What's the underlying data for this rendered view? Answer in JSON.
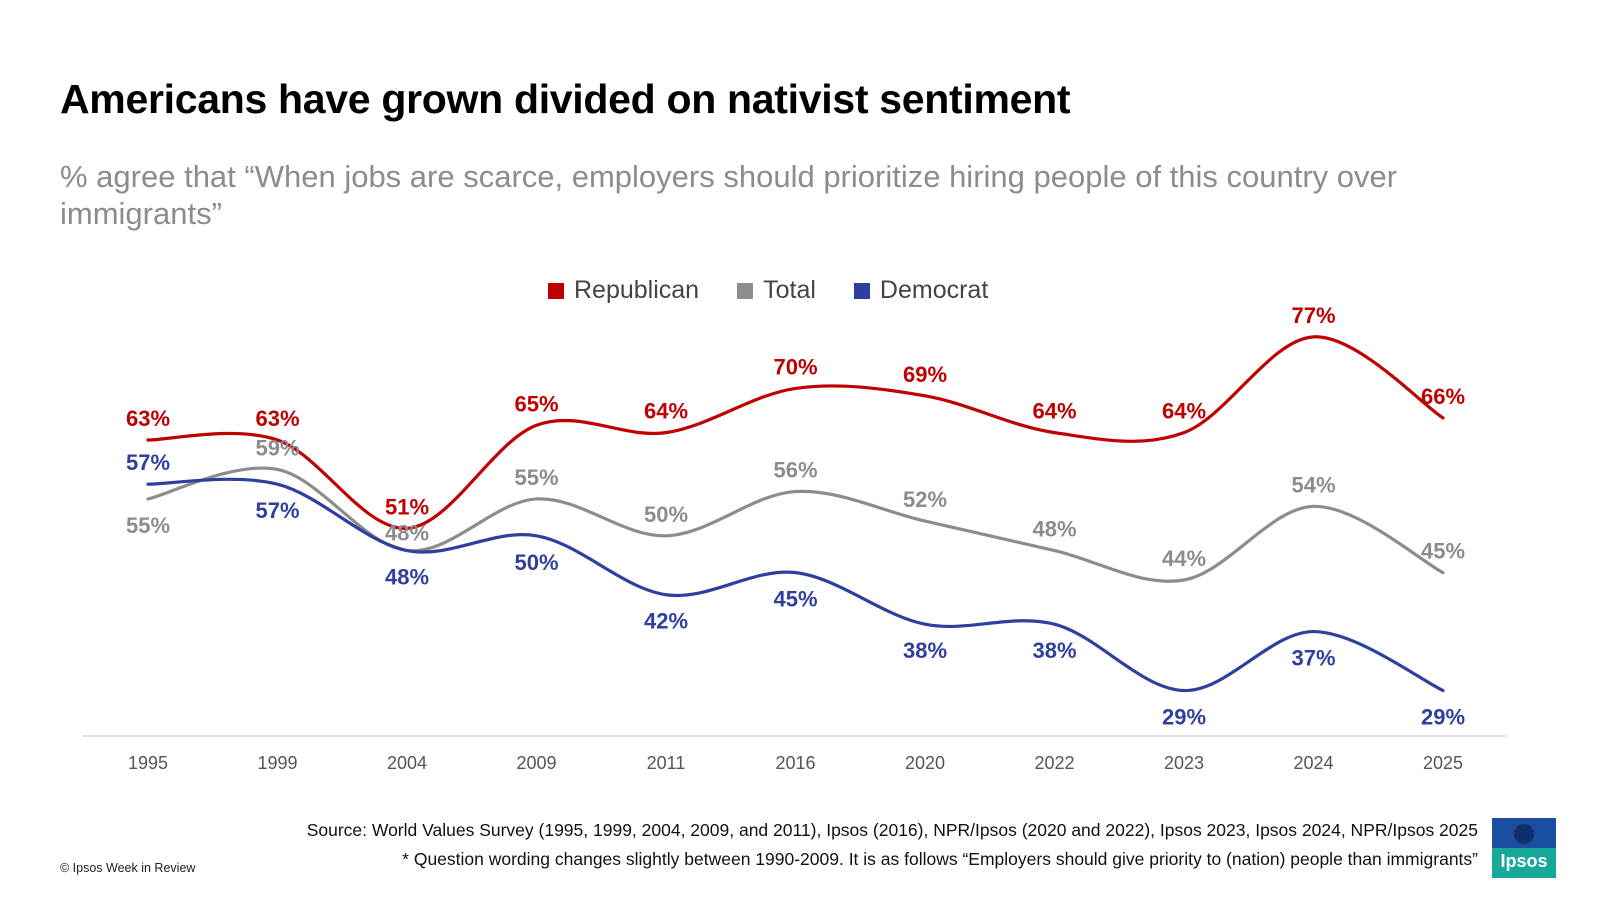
{
  "title": "Americans have grown divided on nativist sentiment",
  "subtitle": "% agree that “When jobs are scarce, employers should prioritize hiring people of this country over immigrants”",
  "source": {
    "line1": "Source: World Values Survey (1995, 1999, 2004, 2009, and 2011), Ipsos (2016), NPR/Ipsos (2020 and 2022), Ipsos 2023, Ipsos 2024, NPR/Ipsos 2025",
    "line2": "* Question wording changes slightly between 1990-2009. It is as follows “Employers should give priority to (nation) people than immigrants”"
  },
  "copyright": "© Ipsos Week in Review",
  "logo_text": "Ipsos",
  "colors": {
    "republican": "#c00000",
    "total": "#8c8c8c",
    "democrat": "#2e3f9e",
    "axis": "#d9d9d9",
    "tick_label": "#555555"
  },
  "chart_data": {
    "type": "line",
    "x": [
      "1995",
      "1999",
      "2004",
      "2009",
      "2011",
      "2016",
      "2020",
      "2022",
      "2023",
      "2024",
      "2025"
    ],
    "series": [
      {
        "name": "Republican",
        "color": "#c00000",
        "values": [
          63,
          63,
          51,
          65,
          64,
          70,
          69,
          64,
          64,
          77,
          66
        ],
        "labels": [
          "63%",
          "63%",
          "51%",
          "65%",
          "64%",
          "70%",
          "69%",
          "64%",
          "64%",
          "77%",
          "66%"
        ]
      },
      {
        "name": "Total",
        "color": "#8c8c8c",
        "values": [
          55,
          59,
          48,
          55,
          50,
          56,
          52,
          48,
          44,
          54,
          45
        ],
        "labels": [
          "55%",
          "59%",
          "48%",
          "55%",
          "50%",
          "56%",
          "52%",
          "48%",
          "44%",
          "54%",
          "45%"
        ]
      },
      {
        "name": "Democrat",
        "color": "#2e3f9e",
        "values": [
          57,
          57,
          48,
          50,
          42,
          45,
          38,
          38,
          29,
          37,
          29
        ],
        "labels": [
          "57%",
          "57%",
          "48%",
          "50%",
          "42%",
          "45%",
          "38%",
          "38%",
          "29%",
          "37%",
          "29%"
        ]
      }
    ],
    "ylim": [
      0,
      100
    ],
    "legend_position": "top-center",
    "grid": false
  }
}
